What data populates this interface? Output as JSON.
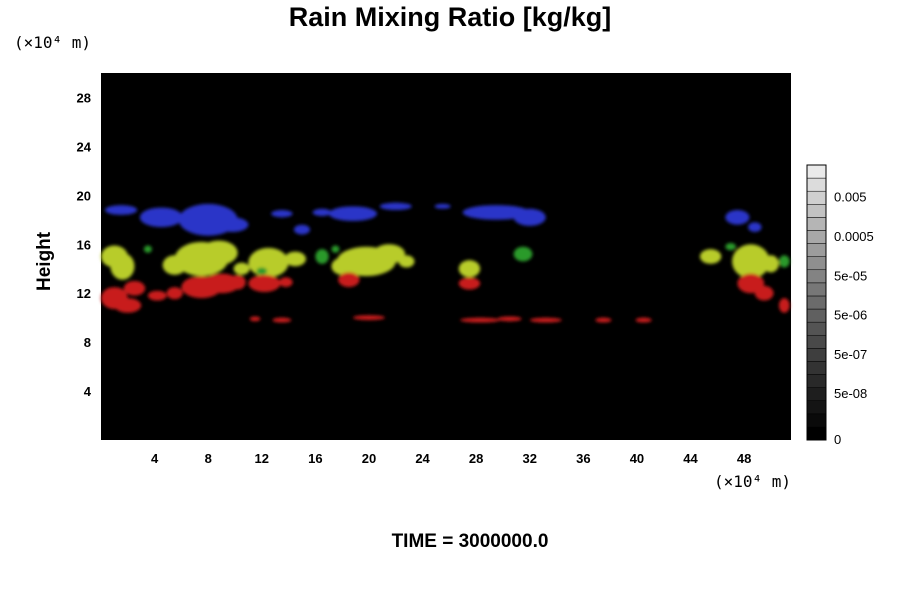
{
  "chart_data": {
    "type": "heatmap",
    "title": "Rain Mixing Ratio [kg/kg]",
    "ylabel": "Height",
    "y_unit_label": "(×10⁴ m)",
    "x_unit_label": "(×10⁴ m)",
    "footer": "TIME = 3000000.0",
    "xlim": [
      0,
      51.5
    ],
    "ylim": [
      0,
      30
    ],
    "x_ticks": [
      "4",
      "8",
      "12",
      "16",
      "20",
      "24",
      "28",
      "32",
      "36",
      "40",
      "44",
      "48"
    ],
    "x_tick_values": [
      4,
      8,
      12,
      16,
      20,
      24,
      28,
      32,
      36,
      40,
      44,
      48
    ],
    "y_ticks": [
      "4",
      "8",
      "12",
      "16",
      "20",
      "24",
      "28"
    ],
    "y_tick_values": [
      4,
      8,
      12,
      16,
      20,
      24,
      28
    ],
    "colorbar": {
      "labels": [
        "0",
        "5e-08",
        "5e-07",
        "5e-06",
        "5e-05",
        "0.0005",
        "0.005"
      ],
      "levels": 21
    },
    "layers": [
      {
        "color": "#2a36c8",
        "blobs": [
          [
            1.5,
            18.8,
            1.2,
            0.4
          ],
          [
            4.5,
            18.2,
            1.6,
            0.8
          ],
          [
            8,
            18.0,
            2.2,
            1.3
          ],
          [
            9.8,
            17.6,
            1.2,
            0.6
          ],
          [
            13.5,
            18.5,
            0.8,
            0.3
          ],
          [
            15,
            17.2,
            0.6,
            0.4
          ],
          [
            16.5,
            18.6,
            0.7,
            0.3
          ],
          [
            18.8,
            18.5,
            1.8,
            0.6
          ],
          [
            22,
            19.1,
            1.2,
            0.3
          ],
          [
            25.5,
            19.1,
            0.6,
            0.2
          ],
          [
            29.5,
            18.6,
            2.5,
            0.6
          ],
          [
            32,
            18.2,
            1.2,
            0.7
          ],
          [
            47.5,
            18.2,
            0.9,
            0.6
          ],
          [
            48.8,
            17.4,
            0.5,
            0.4
          ]
        ]
      },
      {
        "color": "#b8cc2a",
        "blobs": [
          [
            1,
            15.0,
            1.0,
            0.9
          ],
          [
            1.6,
            14.2,
            0.9,
            1.1
          ],
          [
            5.5,
            14.3,
            0.9,
            0.8
          ],
          [
            7.5,
            14.8,
            2.0,
            1.4
          ],
          [
            8.8,
            15.3,
            1.4,
            1.0
          ],
          [
            10.5,
            14.0,
            0.6,
            0.5
          ],
          [
            12.5,
            14.5,
            1.5,
            1.2
          ],
          [
            14.5,
            14.8,
            0.8,
            0.6
          ],
          [
            19.8,
            14.6,
            2.2,
            1.2
          ],
          [
            21.5,
            15.2,
            1.2,
            0.8
          ],
          [
            18,
            14.2,
            0.8,
            0.7
          ],
          [
            22.8,
            14.6,
            0.6,
            0.5
          ],
          [
            27.5,
            14.0,
            0.8,
            0.7
          ],
          [
            45.5,
            15.0,
            0.8,
            0.6
          ],
          [
            48.5,
            14.6,
            1.4,
            1.4
          ],
          [
            50,
            14.4,
            0.6,
            0.7
          ]
        ]
      },
      {
        "color": "#2a9a2a",
        "blobs": [
          [
            3.5,
            15.6,
            0.3,
            0.3
          ],
          [
            16.5,
            15.0,
            0.5,
            0.6
          ],
          [
            17.5,
            15.6,
            0.3,
            0.3
          ],
          [
            31.5,
            15.2,
            0.7,
            0.6
          ],
          [
            47,
            15.8,
            0.4,
            0.3
          ],
          [
            51,
            14.6,
            0.4,
            0.5
          ],
          [
            12,
            13.8,
            0.4,
            0.3
          ]
        ]
      },
      {
        "color": "#c81f1f",
        "blobs": [
          [
            1,
            11.6,
            1.0,
            0.9
          ],
          [
            2,
            11.0,
            1.0,
            0.6
          ],
          [
            2.5,
            12.4,
            0.8,
            0.6
          ],
          [
            4.2,
            11.8,
            0.7,
            0.4
          ],
          [
            5.5,
            12.0,
            0.6,
            0.5
          ],
          [
            7.5,
            12.5,
            1.5,
            0.9
          ],
          [
            9,
            12.8,
            1.4,
            0.8
          ],
          [
            10.2,
            12.9,
            0.6,
            0.6
          ],
          [
            12.2,
            12.8,
            1.2,
            0.7
          ],
          [
            13.8,
            12.9,
            0.5,
            0.4
          ],
          [
            18.5,
            13.1,
            0.8,
            0.6
          ],
          [
            27.5,
            12.8,
            0.8,
            0.5
          ],
          [
            11.5,
            9.9,
            0.4,
            0.2
          ],
          [
            13.5,
            9.8,
            0.7,
            0.2
          ],
          [
            20,
            10.0,
            1.2,
            0.2
          ],
          [
            28.3,
            9.8,
            1.5,
            0.2
          ],
          [
            30.5,
            9.9,
            0.9,
            0.2
          ],
          [
            33.2,
            9.8,
            1.2,
            0.2
          ],
          [
            37.5,
            9.8,
            0.6,
            0.2
          ],
          [
            40.5,
            9.8,
            0.6,
            0.2
          ],
          [
            48.5,
            12.8,
            1.0,
            0.8
          ],
          [
            49.5,
            12.0,
            0.7,
            0.6
          ],
          [
            51,
            11.0,
            0.4,
            0.6
          ]
        ]
      }
    ]
  }
}
